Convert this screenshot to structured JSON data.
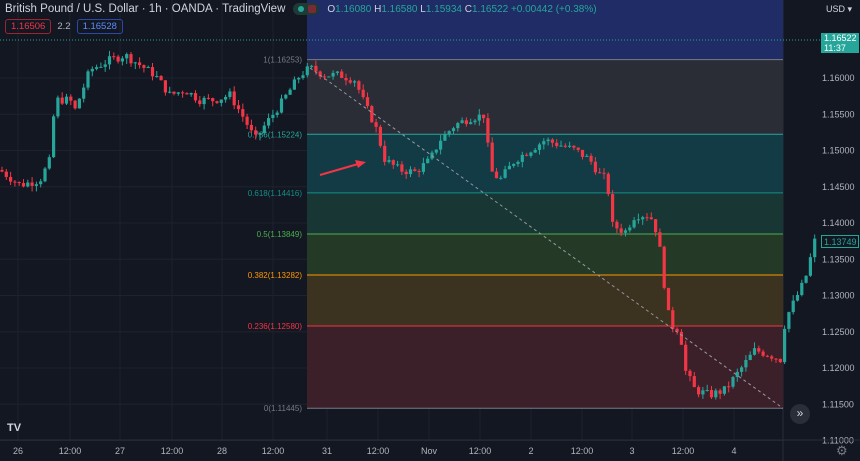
{
  "header": {
    "title": "British Pound / U.S. Dollar · 1h · OANDA · TradingView",
    "ohlc": {
      "o_label": "O",
      "o": "1.16080",
      "h_label": "H",
      "h": "1.16580",
      "l_label": "L",
      "l": "1.15934",
      "c_label": "C",
      "c": "1.16522",
      "change": "+0.00442 (+0.38%)"
    },
    "sell": "1.16506",
    "spread": "2.2",
    "buy": "1.16528"
  },
  "axis": {
    "currency": "USD ▾",
    "last_price": "1.16522",
    "countdown": "11:37",
    "cursor_price": "1.13749"
  },
  "icons": {
    "logo": "tradingview-logo",
    "scroll": "double-chevron-right-icon",
    "settings": "gear-icon"
  },
  "logo_text": "TV",
  "scroll_label": "»",
  "gear_label": "⚙",
  "chart_data": {
    "type": "candlestick",
    "symbol": "GBPUSD",
    "interval": "1h",
    "ylim": [
      1.11,
      1.168
    ],
    "y_ticks": [
      "1.16000",
      "1.15500",
      "1.15000",
      "1.14500",
      "1.14000",
      "1.13500",
      "1.13000",
      "1.12500",
      "1.12000",
      "1.11500",
      "1.11000"
    ],
    "x_ticks": [
      "26",
      "12:00",
      "27",
      "12:00",
      "28",
      "12:00",
      "31",
      "12:00",
      "Nov",
      "12:00",
      "2",
      "12:00",
      "3",
      "12:00",
      "4"
    ],
    "close_path": [
      1.14731,
      1.14524,
      1.14593,
      1.14869,
      1.15697,
      1.15697,
      1.15559,
      1.1611,
      1.16248,
      1.16317,
      1.16179,
      1.16041,
      1.15766,
      1.15834,
      1.15697,
      1.15697,
      1.15766,
      1.15421,
      1.15145,
      1.15352,
      1.15628,
      1.15834,
      1.16041,
      1.16138,
      1.16041,
      1.16041,
      1.15972,
      1.15628,
      1.15352,
      1.14869,
      1.14731,
      1.14703,
      1.14869,
      1.15145,
      1.15352,
      1.15448,
      1.1549,
      1.14731,
      1.14593,
      1.14869,
      1.15007,
      1.15145,
      1.15076,
      1.15007,
      1.14869,
      1.14662,
      1.14593,
      1.13972,
      1.13876,
      1.1411,
      1.1411,
      1.13834,
      1.13076,
      1.12593,
      1.12524,
      1.11972,
      1.11697,
      1.11628,
      1.11697,
      1.11972,
      1.12248,
      1.12179,
      1.1211,
      1.12662,
      1.12938,
      1.13214,
      1.13766
    ],
    "colors": {
      "up": "#26a69a",
      "down": "#f23645"
    },
    "fibonacci": [
      {
        "ratio": "1",
        "price": 1.16253,
        "label": "1(1.16253)",
        "color": "#787b86",
        "fill": "#2a2d36"
      },
      {
        "ratio": "0.786",
        "price": 1.15224,
        "label": "0.786(1.15224)",
        "color": "#26a69a",
        "fill": "#123b45"
      },
      {
        "ratio": "0.618",
        "price": 1.14416,
        "label": "0.618(1.14416)",
        "color": "#138f8a",
        "fill": "#173634"
      },
      {
        "ratio": "0.5",
        "price": 1.13849,
        "label": "0.5(1.13849)",
        "color": "#4caf50",
        "fill": "#243a26"
      },
      {
        "ratio": "0.382",
        "price": 1.13282,
        "label": "0.382(1.13282)",
        "color": "#ff9800",
        "fill": "#3b3220"
      },
      {
        "ratio": "0.236",
        "price": 1.1258,
        "label": "0.236(1.12580)",
        "color": "#f23645",
        "fill": "#3b1f29"
      },
      {
        "ratio": "0",
        "price": 1.11445,
        "label": "0(1.11445)",
        "color": "#787b86",
        "fill": null
      }
    ],
    "fib_extension_fill": "#1f2c66",
    "trendline": {
      "from": 1.16138,
      "to": 1.11445,
      "style": "dashed"
    },
    "annotation": "red-arrow"
  }
}
